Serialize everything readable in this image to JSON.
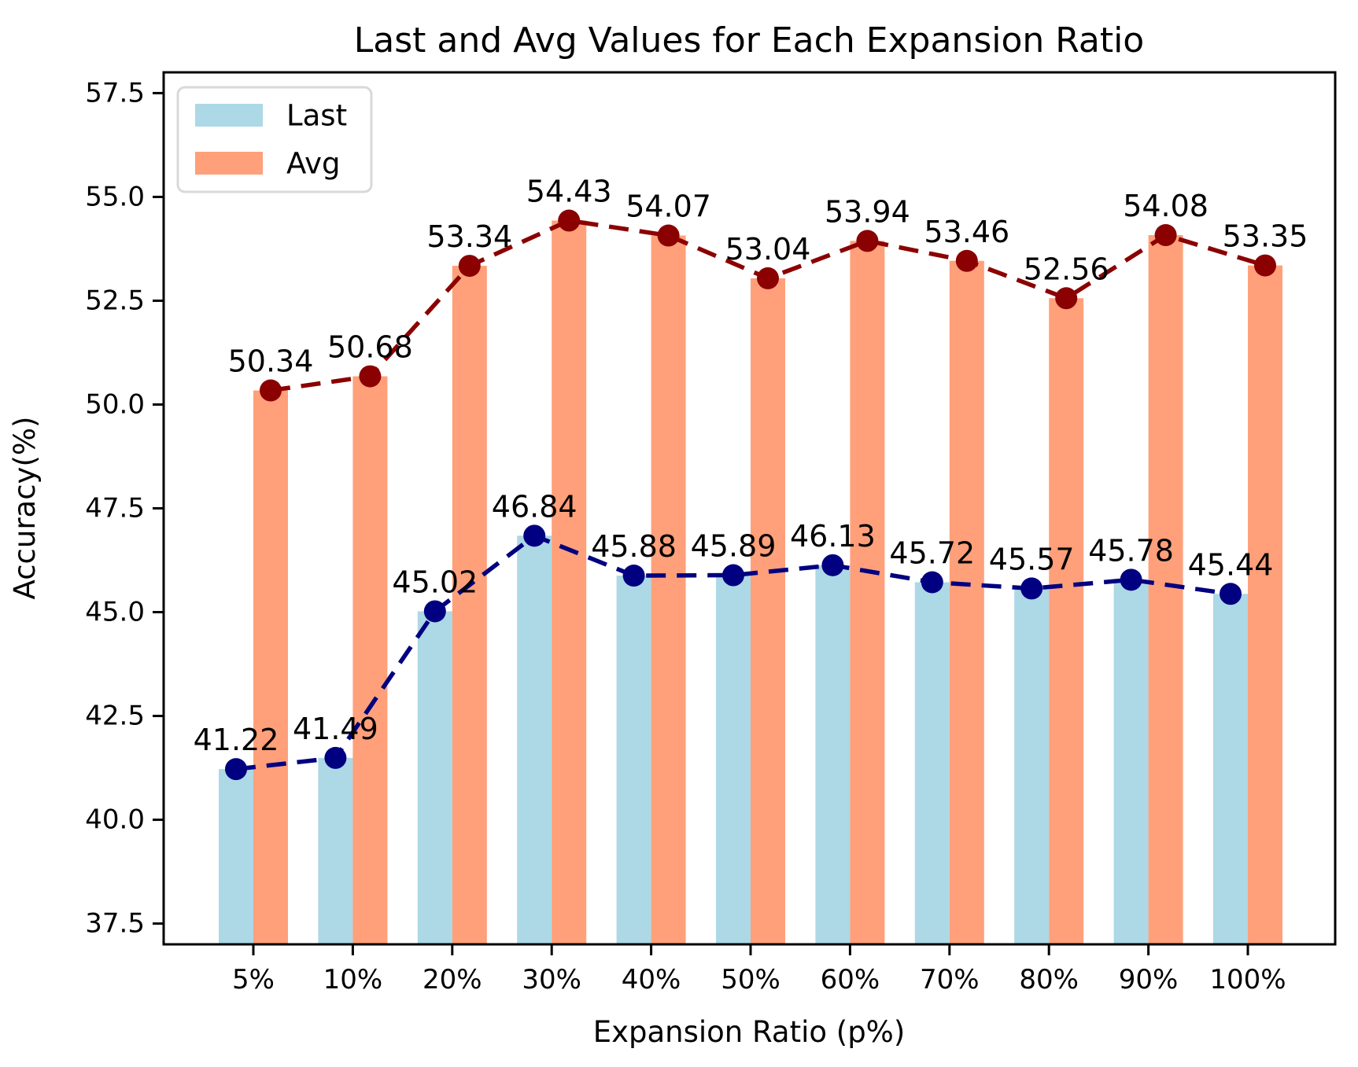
{
  "chart_data": {
    "type": "bar",
    "title": "Last and Avg Values for Each Expansion Ratio",
    "xlabel": "Expansion Ratio (p%)",
    "ylabel": "Accuracy(%)",
    "categories": [
      "5%",
      "10%",
      "20%",
      "30%",
      "40%",
      "50%",
      "60%",
      "70%",
      "80%",
      "90%",
      "100%"
    ],
    "series": [
      {
        "name": "Last",
        "values": [
          41.22,
          41.49,
          45.02,
          46.84,
          45.88,
          45.89,
          46.13,
          45.72,
          45.57,
          45.78,
          45.44
        ],
        "bar_color": "#ADD8E6",
        "line_color": "#000080",
        "line_style": "dashed",
        "marker": "circle"
      },
      {
        "name": "Avg",
        "values": [
          50.34,
          50.68,
          53.34,
          54.43,
          54.07,
          53.04,
          53.94,
          53.46,
          52.56,
          54.08,
          53.35
        ],
        "bar_color": "#FFA07A",
        "line_color": "#8B0000",
        "line_style": "dashed",
        "marker": "circle"
      }
    ],
    "yticks": [
      37.5,
      40.0,
      42.5,
      45.0,
      47.5,
      50.0,
      52.5,
      55.0,
      57.5
    ],
    "ylim": [
      37.0,
      58.0
    ],
    "grid": false,
    "legend_position": "upper left",
    "value_labels": true,
    "colors": {
      "spine": "#000000",
      "background": "#ffffff",
      "legend_border": "#d9d9d9",
      "text": "#000000"
    }
  }
}
